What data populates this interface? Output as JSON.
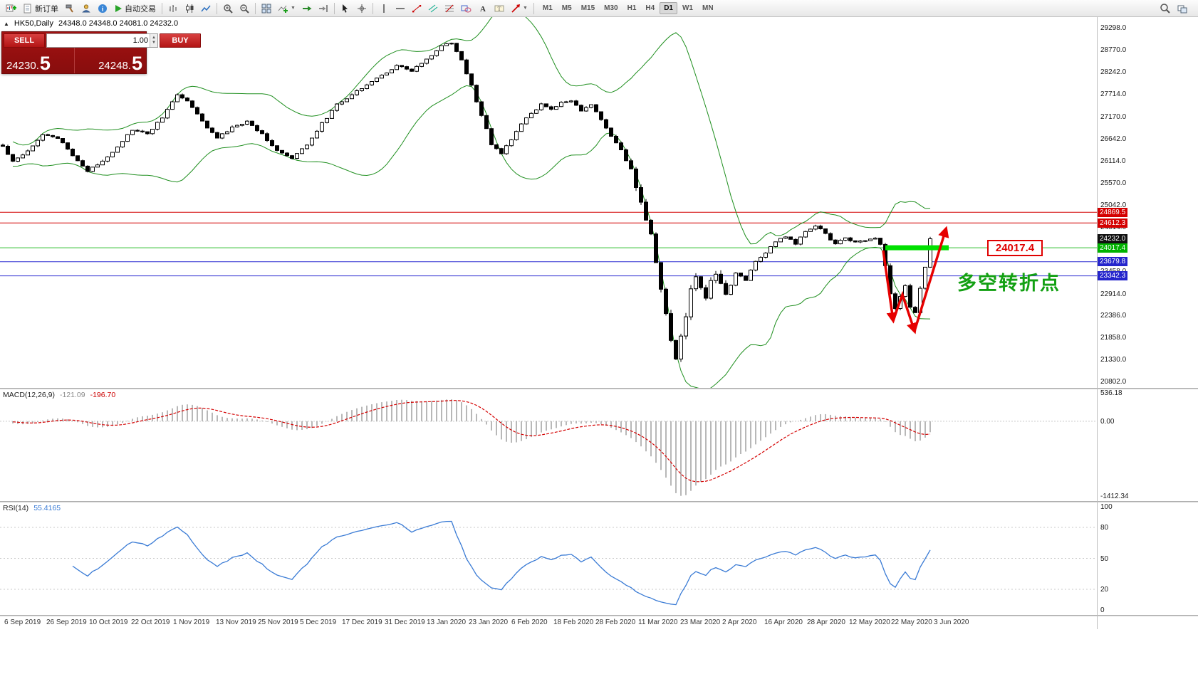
{
  "toolbar": {
    "new_order_label": "新订单",
    "autotrading_label": "自动交易",
    "timeframes": [
      "M1",
      "M5",
      "M15",
      "M30",
      "H1",
      "H4",
      "D1",
      "W1",
      "MN"
    ],
    "active_timeframe": "D1"
  },
  "one_click": {
    "sell_label": "SELL",
    "buy_label": "BUY",
    "volume": "1.00",
    "sell_price_main": "24230.",
    "sell_price_big": "5",
    "buy_price_main": "24248.",
    "buy_price_big": "5"
  },
  "chart_header": {
    "symbol_period": "HK50,Daily",
    "ohlc": "24348.0 24348.0 24081.0 24232.0"
  },
  "price_axis": {
    "labels": [
      29298.0,
      28770.0,
      28242.0,
      27714.0,
      27170.0,
      26642.0,
      26114.0,
      25570.0,
      25042.0,
      24514.0,
      23458.0,
      22914.0,
      22386.0,
      21858.0,
      21330.0,
      20802.0
    ],
    "marked": [
      {
        "value": 24869.5,
        "text": "24869.5",
        "color": "#d40000"
      },
      {
        "value": 24612.3,
        "text": "24612.3",
        "color": "#d40000"
      },
      {
        "value": 24232.0,
        "text": "24232.0",
        "color": "#111111"
      },
      {
        "value": 24017.4,
        "text": "24017.4",
        "color": "#00b300"
      },
      {
        "value": 23679.8,
        "text": "23679.8",
        "color": "#2525cc"
      },
      {
        "value": 23342.3,
        "text": "23342.3",
        "color": "#2525cc"
      }
    ]
  },
  "annotations": {
    "price_callout": "24017.4",
    "turning_point": "多空转折点"
  },
  "macd": {
    "label": "MACD(12,26,9)",
    "value_main": "-121.09",
    "value_signal": "-196.70",
    "axis": [
      "536.18",
      "0.00",
      "-1412.34"
    ],
    "axis_values": [
      536.18,
      0,
      -1412.34
    ]
  },
  "rsi": {
    "label": "RSI(14)",
    "value": "55.4165",
    "axis": [
      "100",
      "80",
      "50",
      "20",
      "0"
    ],
    "axis_values": [
      100,
      80,
      50,
      20,
      0
    ],
    "levels": [
      80,
      50,
      20
    ]
  },
  "date_axis": [
    "6 Sep 2019",
    "26 Sep 2019",
    "10 Oct 2019",
    "22 Oct 2019",
    "1 Nov 2019",
    "13 Nov 2019",
    "25 Nov 2019",
    "5 Dec 2019",
    "17 Dec 2019",
    "31 Dec 2019",
    "13 Jan 2020",
    "23 Jan 2020",
    "6 Feb 2020",
    "18 Feb 2020",
    "28 Feb 2020",
    "11 Mar 2020",
    "23 Mar 2020",
    "2 Apr 2020",
    "16 Apr 2020",
    "28 Apr 2020",
    "12 May 2020",
    "22 May 2020",
    "3 Jun 2020"
  ],
  "chart_data": {
    "type": "candlestick",
    "symbol": "HK50",
    "timeframe": "Daily",
    "ohlc_display": {
      "open": 24348.0,
      "high": 24348.0,
      "low": 24081.0,
      "close": 24232.0
    },
    "y_range": [
      20650,
      29560
    ],
    "num_candles": 187,
    "last_close": 24232.0,
    "band_color": "#1f8f1f",
    "macd_range": [
      600,
      -1500
    ],
    "close_anchors": [
      [
        0,
        26450
      ],
      [
        2,
        26100
      ],
      [
        5,
        26350
      ],
      [
        8,
        26750
      ],
      [
        11,
        26650
      ],
      [
        14,
        26250
      ],
      [
        17,
        25850
      ],
      [
        20,
        26100
      ],
      [
        23,
        26450
      ],
      [
        26,
        26850
      ],
      [
        29,
        26750
      ],
      [
        32,
        27150
      ],
      [
        35,
        27700
      ],
      [
        37,
        27550
      ],
      [
        40,
        27050
      ],
      [
        43,
        26650
      ],
      [
        46,
        26900
      ],
      [
        49,
        27050
      ],
      [
        52,
        26750
      ],
      [
        55,
        26350
      ],
      [
        58,
        26150
      ],
      [
        61,
        26500
      ],
      [
        64,
        27000
      ],
      [
        67,
        27450
      ],
      [
        70,
        27700
      ],
      [
        73,
        27950
      ],
      [
        76,
        28150
      ],
      [
        79,
        28400
      ],
      [
        82,
        28250
      ],
      [
        85,
        28550
      ],
      [
        88,
        28850
      ],
      [
        90,
        28950
      ],
      [
        92,
        28500
      ],
      [
        94,
        27900
      ],
      [
        96,
        27200
      ],
      [
        98,
        26500
      ],
      [
        100,
        26300
      ],
      [
        102,
        26600
      ],
      [
        104,
        27000
      ],
      [
        106,
        27250
      ],
      [
        108,
        27450
      ],
      [
        110,
        27350
      ],
      [
        112,
        27500
      ],
      [
        114,
        27550
      ],
      [
        116,
        27300
      ],
      [
        118,
        27450
      ],
      [
        120,
        27100
      ],
      [
        122,
        26700
      ],
      [
        124,
        26350
      ],
      [
        126,
        25900
      ],
      [
        128,
        25100
      ],
      [
        130,
        24300
      ],
      [
        131,
        23700
      ],
      [
        132,
        23000
      ],
      [
        133,
        22400
      ],
      [
        134,
        21800
      ],
      [
        135,
        21350
      ],
      [
        136,
        21900
      ],
      [
        137,
        22400
      ],
      [
        138,
        23000
      ],
      [
        139,
        23300
      ],
      [
        140,
        23100
      ],
      [
        141,
        22800
      ],
      [
        142,
        23200
      ],
      [
        143,
        23400
      ],
      [
        144,
        23150
      ],
      [
        145,
        22950
      ],
      [
        147,
        23400
      ],
      [
        149,
        23250
      ],
      [
        151,
        23700
      ],
      [
        153,
        23900
      ],
      [
        155,
        24150
      ],
      [
        157,
        24300
      ],
      [
        159,
        24100
      ],
      [
        161,
        24400
      ],
      [
        163,
        24550
      ],
      [
        165,
        24350
      ],
      [
        167,
        24100
      ],
      [
        169,
        24250
      ],
      [
        171,
        24150
      ],
      [
        173,
        24200
      ],
      [
        175,
        24250
      ],
      [
        176,
        24100
      ],
      [
        177,
        23600
      ],
      [
        178,
        22900
      ],
      [
        179,
        22550
      ],
      [
        180,
        22850
      ],
      [
        181,
        23100
      ],
      [
        182,
        22600
      ],
      [
        183,
        22450
      ],
      [
        184,
        23050
      ],
      [
        185,
        23550
      ],
      [
        186,
        24232
      ]
    ],
    "indicators": [
      {
        "type": "bollinger",
        "period": 20,
        "deviation": 2
      },
      {
        "type": "macd",
        "fast": 12,
        "slow": 26,
        "signal": 9,
        "last_main": -121.09,
        "last_signal": -196.7
      },
      {
        "type": "rsi",
        "period": 14,
        "last": 55.4165
      }
    ],
    "hlines": [
      {
        "value": 24869.5,
        "color": "#d40000"
      },
      {
        "value": 24612.3,
        "color": "#d40000"
      },
      {
        "value": 24017.4,
        "color": "#2fbf2f",
        "highlight_segment": true
      },
      {
        "value": 23679.8,
        "color": "#2a2ad0"
      },
      {
        "value": 23342.3,
        "color": "#2a2ad0"
      }
    ]
  }
}
